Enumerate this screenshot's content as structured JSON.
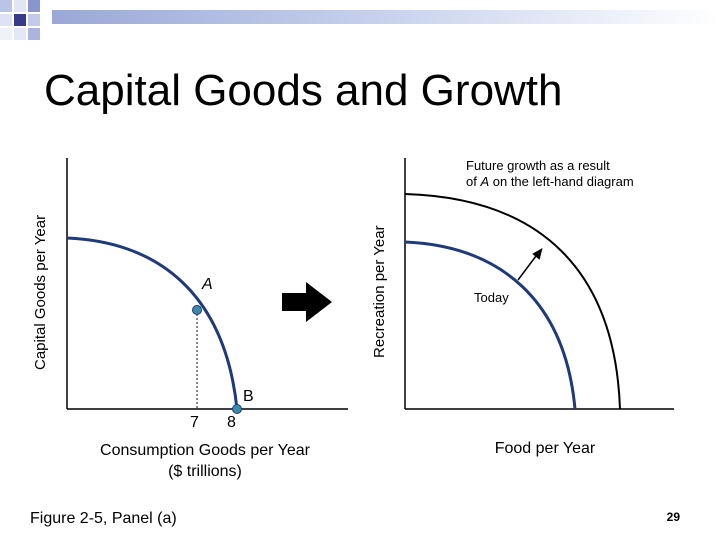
{
  "title": "Capital Goods and Growth",
  "left_diagram": {
    "y_axis_label": "Capital Goods per Year",
    "x_axis_label_line1": "Consumption Goods per Year",
    "x_axis_label_line2": "($ trillions)",
    "tick_7": "7",
    "tick_8": "8",
    "point_A": "A",
    "point_B": "B"
  },
  "right_diagram": {
    "y_axis_label": "Recreation per Year",
    "x_axis_label": "Food per Year",
    "note_line1": "Future growth as a result",
    "note_line2_prefix": "of ",
    "note_line2_italic": "A",
    "note_line2_suffix": " on the left-hand diagram",
    "curve_label_today": "Today"
  },
  "footer": {
    "figure_caption": "Figure 2-5, Panel (a)",
    "page_number": "29"
  },
  "colors": {
    "curve": "#1f3a7a",
    "point": "#3a8aa8",
    "arrow": "#000000",
    "bar_dark": "#3a3a8a",
    "bar_light": "#c8d4ec",
    "dotted_line": "#8a8a8a"
  }
}
